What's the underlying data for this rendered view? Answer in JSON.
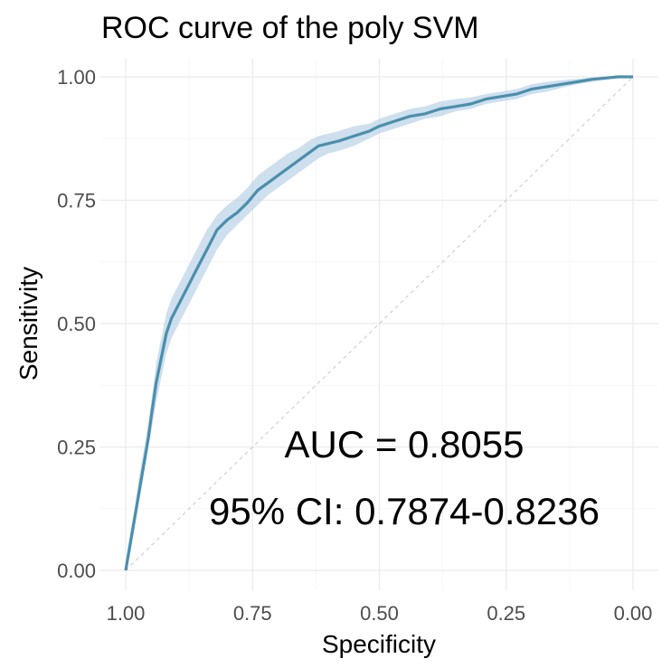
{
  "chart_data": {
    "type": "line",
    "title": "ROC curve of the poly SVM",
    "xlabel": "Specificity",
    "ylabel": "Sensitivity",
    "x_reversed": true,
    "xlim": [
      1.0,
      0.0
    ],
    "ylim": [
      0.0,
      1.0
    ],
    "x_ticks": [
      "1.00",
      "0.75",
      "0.50",
      "0.25",
      "0.00"
    ],
    "y_ticks": [
      "0.00",
      "0.25",
      "0.50",
      "0.75",
      "1.00"
    ],
    "grid": true,
    "colors": {
      "curve": "#4a8fad",
      "ribbon": "#b9d1e6",
      "diagonal": "#c8c8c8"
    },
    "annotations": [
      "AUC = 0.8055",
      "95% CI: 0.7874-0.8236"
    ],
    "series": [
      {
        "x": [
          1.0,
          0.995,
          0.99,
          0.985,
          0.98,
          0.975,
          0.97,
          0.965,
          0.96,
          0.955,
          0.95,
          0.94,
          0.93,
          0.92,
          0.91,
          0.9,
          0.88,
          0.86,
          0.84,
          0.82,
          0.8,
          0.78,
          0.76,
          0.74,
          0.72,
          0.7,
          0.68,
          0.66,
          0.64,
          0.62,
          0.6,
          0.58,
          0.55,
          0.52,
          0.5,
          0.47,
          0.44,
          0.41,
          0.38,
          0.35,
          0.32,
          0.29,
          0.26,
          0.23,
          0.2,
          0.17,
          0.14,
          0.11,
          0.08,
          0.05,
          0.03,
          0.0
        ],
        "y": [
          0.0,
          0.03,
          0.06,
          0.09,
          0.12,
          0.15,
          0.18,
          0.21,
          0.24,
          0.27,
          0.31,
          0.38,
          0.43,
          0.48,
          0.51,
          0.53,
          0.57,
          0.61,
          0.65,
          0.69,
          0.71,
          0.725,
          0.745,
          0.77,
          0.785,
          0.8,
          0.815,
          0.83,
          0.845,
          0.86,
          0.865,
          0.87,
          0.88,
          0.89,
          0.9,
          0.91,
          0.92,
          0.925,
          0.935,
          0.94,
          0.945,
          0.955,
          0.96,
          0.965,
          0.975,
          0.98,
          0.985,
          0.99,
          0.995,
          0.998,
          1.0,
          1.0
        ],
        "ci_lower": [
          0.0,
          0.02,
          0.04,
          0.07,
          0.1,
          0.13,
          0.16,
          0.19,
          0.22,
          0.25,
          0.28,
          0.34,
          0.39,
          0.44,
          0.47,
          0.49,
          0.53,
          0.57,
          0.61,
          0.65,
          0.68,
          0.7,
          0.72,
          0.74,
          0.76,
          0.775,
          0.79,
          0.805,
          0.82,
          0.835,
          0.845,
          0.85,
          0.86,
          0.875,
          0.885,
          0.895,
          0.905,
          0.915,
          0.92,
          0.93,
          0.935,
          0.945,
          0.95,
          0.955,
          0.965,
          0.97,
          0.978,
          0.985,
          0.99,
          0.995,
          0.998,
          1.0
        ],
        "ci_upper": [
          0.02,
          0.05,
          0.08,
          0.11,
          0.14,
          0.18,
          0.21,
          0.24,
          0.27,
          0.3,
          0.34,
          0.42,
          0.47,
          0.52,
          0.55,
          0.57,
          0.61,
          0.65,
          0.69,
          0.72,
          0.74,
          0.755,
          0.775,
          0.8,
          0.815,
          0.83,
          0.845,
          0.855,
          0.87,
          0.88,
          0.885,
          0.89,
          0.9,
          0.905,
          0.915,
          0.925,
          0.935,
          0.94,
          0.95,
          0.955,
          0.958,
          0.965,
          0.97,
          0.975,
          0.985,
          0.99,
          0.993,
          0.996,
          0.999,
          1.0,
          1.0,
          1.0
        ]
      }
    ]
  }
}
